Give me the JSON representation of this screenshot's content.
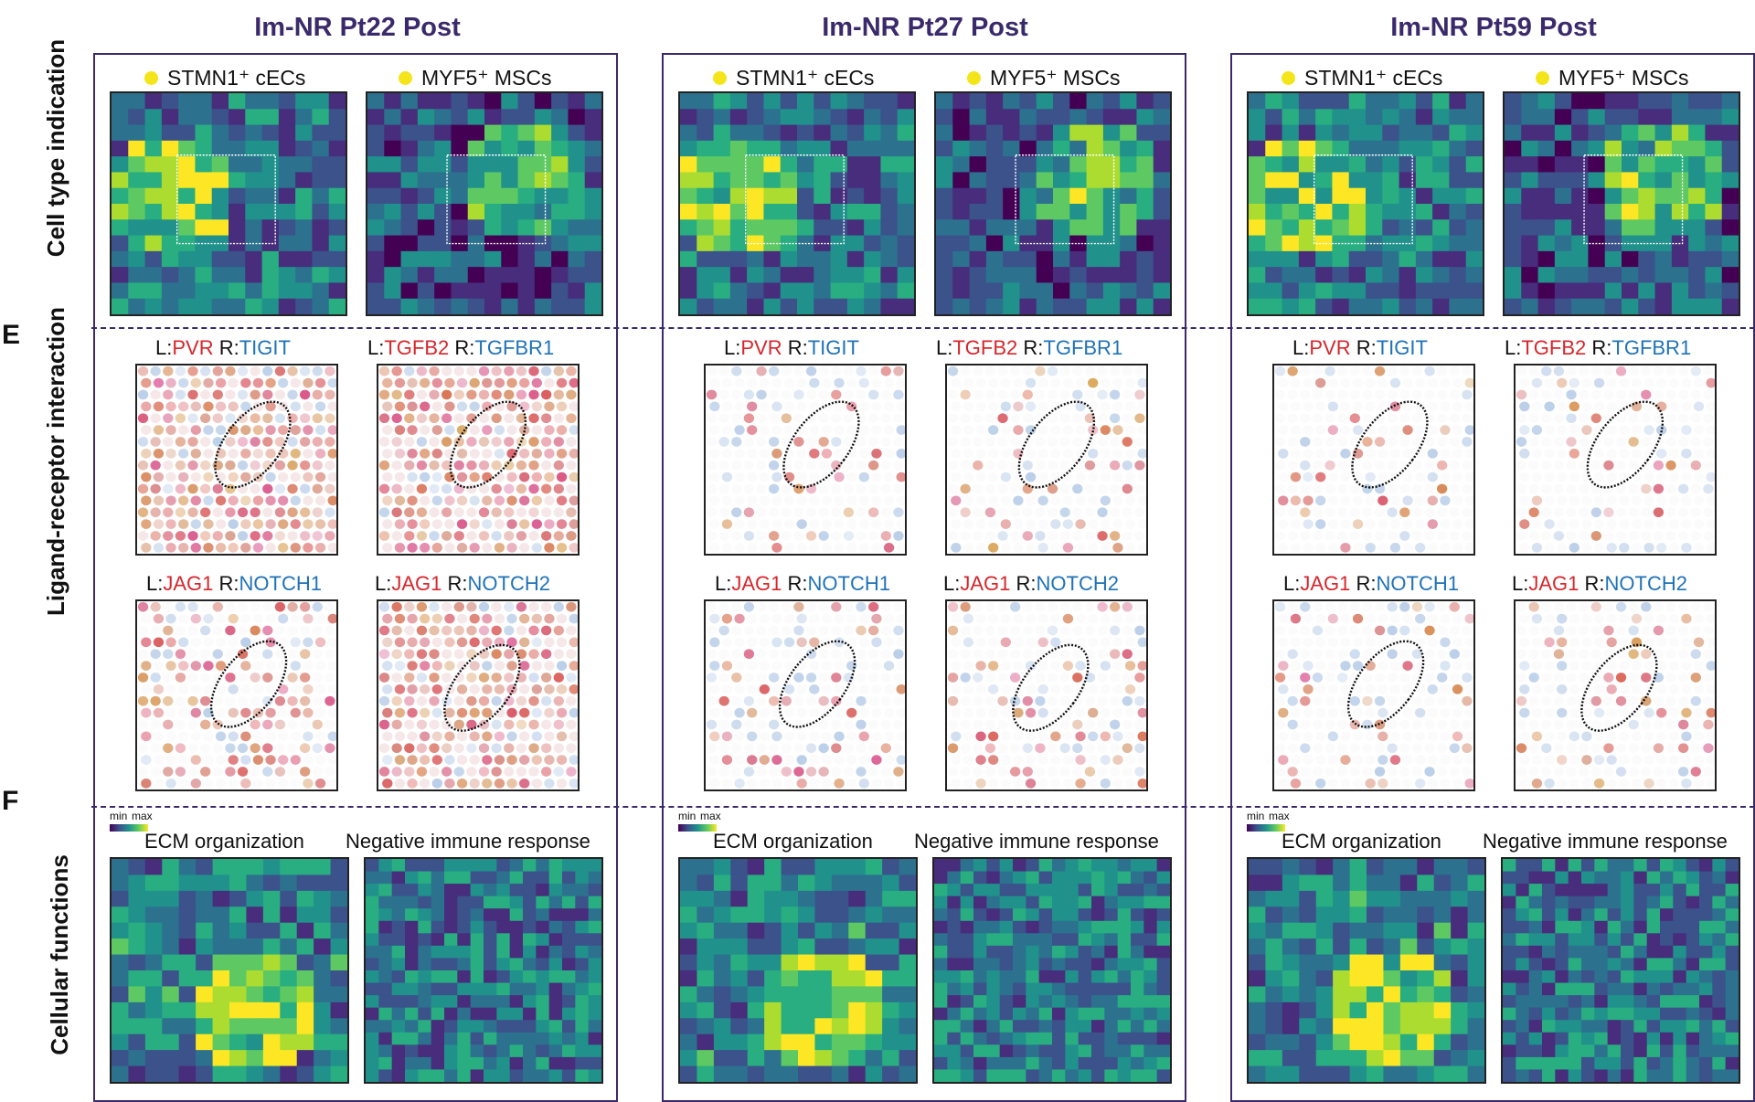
{
  "panels": [
    {
      "title": "Im-NR Pt22 Post"
    },
    {
      "title": "Im-NR Pt27 Post"
    },
    {
      "title": "Im-NR Pt59 Post"
    }
  ],
  "row_labels": {
    "cell_type": "Cell type indication",
    "ligand_receptor": "Ligand-receptor interaction",
    "cellular": "Cellular functions"
  },
  "section_letters": {
    "e": "E",
    "f": "F"
  },
  "legend": {
    "stmn1": "STMN1⁺ cECs",
    "myf5": "MYF5⁺ MSCs"
  },
  "pairs": [
    {
      "l_prefix": "L:",
      "ligand": "PVR",
      "r_prefix": " R:",
      "receptor": "TIGIT"
    },
    {
      "l_prefix": "L:",
      "ligand": "TGFB2",
      "r_prefix": " R:",
      "receptor": "TGFBR1"
    },
    {
      "l_prefix": "L:",
      "ligand": "JAG1",
      "r_prefix": " R:",
      "receptor": "NOTCH1"
    },
    {
      "l_prefix": "L:",
      "ligand": "JAG1",
      "r_prefix": " R:",
      "receptor": "NOTCH2"
    }
  ],
  "functions": {
    "ecm": "ECM organization",
    "immune": "Negative immune response"
  },
  "colorbar": {
    "min": "min",
    "max": "max"
  },
  "colors": {
    "title": "#3b2a6b",
    "ligand": "#d6262b",
    "receptor": "#1f72b8",
    "celltype_dot": "#f4e51a"
  }
}
